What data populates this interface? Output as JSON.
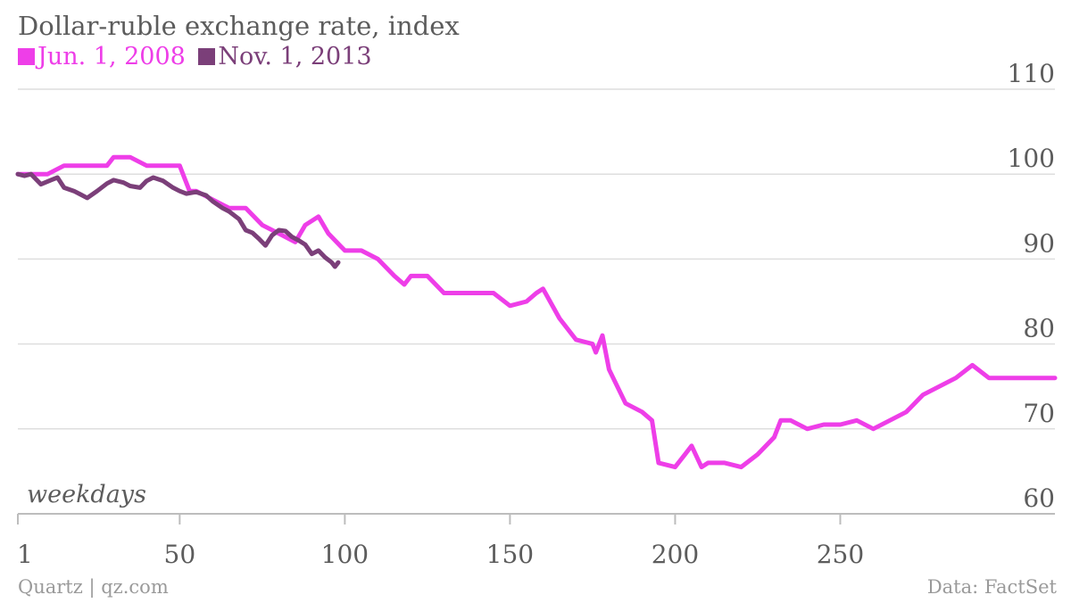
{
  "chart_data": {
    "type": "line",
    "title": "Dollar-ruble exchange rate, index",
    "xlabel": "weekdays",
    "ylabel": "",
    "xlim": [
      1,
      315
    ],
    "ylim": [
      60,
      110
    ],
    "xticks": [
      "1",
      "50",
      "100",
      "150",
      "200",
      "250"
    ],
    "xtick_values": [
      1,
      50,
      100,
      150,
      200,
      250
    ],
    "yticks": [
      "60",
      "70",
      "80",
      "90",
      "100",
      "110"
    ],
    "ytick_values": [
      60,
      70,
      80,
      90,
      100,
      110
    ],
    "grid": "horizontal",
    "legend_position": "top-left",
    "series": [
      {
        "name": "Jun. 1, 2008",
        "color": "#ee3ee8",
        "x": [
          1,
          5,
          10,
          15,
          20,
          25,
          28,
          30,
          35,
          40,
          45,
          50,
          53,
          55,
          60,
          65,
          70,
          75,
          80,
          85,
          88,
          92,
          95,
          100,
          105,
          110,
          115,
          118,
          120,
          125,
          130,
          135,
          140,
          145,
          150,
          155,
          158,
          160,
          165,
          170,
          175,
          176,
          178,
          180,
          185,
          190,
          193,
          195,
          200,
          203,
          205,
          208,
          210,
          215,
          220,
          225,
          230,
          232,
          235,
          240,
          245,
          250,
          255,
          260,
          265,
          270,
          275,
          280,
          285,
          290,
          295,
          298,
          300,
          305,
          310,
          315
        ],
        "values": [
          100,
          100,
          100,
          101,
          101,
          101,
          101,
          102,
          102,
          101,
          101,
          101,
          98,
          98,
          97,
          96,
          96,
          94,
          93,
          92,
          94,
          95,
          93,
          91,
          91,
          90,
          88,
          87,
          88,
          88,
          86,
          86,
          86,
          86,
          84.5,
          85,
          86,
          86.5,
          83,
          80.5,
          80,
          79,
          81,
          77,
          73,
          72,
          71,
          66,
          65.5,
          67,
          68,
          65.5,
          66,
          66,
          65.5,
          67,
          69,
          71,
          71,
          70,
          70.5,
          70.5,
          71,
          70,
          71,
          72,
          74,
          75,
          76,
          77.5,
          76,
          76,
          76,
          76,
          76,
          76
        ]
      },
      {
        "name": "Nov. 1, 2013",
        "color": "#7b3f79",
        "x": [
          1,
          3,
          5,
          8,
          11,
          13,
          15,
          18,
          20,
          22,
          25,
          28,
          30,
          33,
          35,
          38,
          40,
          42,
          45,
          48,
          50,
          52,
          55,
          58,
          60,
          63,
          65,
          68,
          70,
          72,
          74,
          76,
          78,
          80,
          82,
          84,
          86,
          88,
          90,
          92,
          94,
          96,
          97,
          98
        ],
        "values": [
          100,
          99.8,
          100,
          98.8,
          99.3,
          99.6,
          98.4,
          98,
          97.6,
          97.2,
          98,
          98.9,
          99.3,
          99,
          98.6,
          98.4,
          99.2,
          99.6,
          99.2,
          98.4,
          98,
          97.7,
          97.9,
          97.5,
          96.8,
          96,
          95.6,
          94.7,
          93.4,
          93.1,
          92.4,
          91.6,
          92.8,
          93.4,
          93.3,
          92.6,
          92.2,
          91.7,
          90.6,
          91,
          90.2,
          89.6,
          89.1,
          89.6
        ]
      }
    ]
  },
  "source": {
    "left": "Quartz | qz.com",
    "right": "Data: FactSet"
  }
}
